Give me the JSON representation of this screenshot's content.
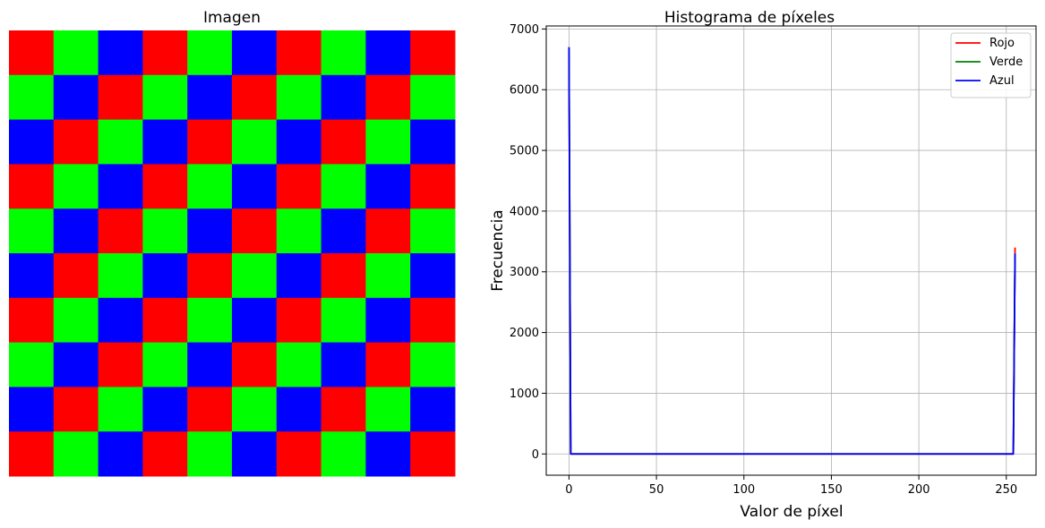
{
  "image_panel": {
    "title": "Imagen",
    "grid_rows": 10,
    "grid_cols": 10,
    "pattern": [
      "red",
      "green",
      "blue"
    ],
    "colors": {
      "red": "#ff0000",
      "green": "#00ff00",
      "blue": "#0000ff"
    }
  },
  "chart_data": {
    "type": "line",
    "title": "Histograma de píxeles",
    "xlabel": "Valor de píxel",
    "ylabel": "Frecuencia",
    "xlim": [
      -13,
      267
    ],
    "ylim": [
      -350,
      7050
    ],
    "xticks": [
      0,
      50,
      100,
      150,
      200,
      250
    ],
    "yticks": [
      0,
      1000,
      2000,
      3000,
      4000,
      5000,
      6000,
      7000
    ],
    "grid": true,
    "legend_position": "top-right",
    "series": [
      {
        "name": "Rojo",
        "color": "#ff0000",
        "points": [
          [
            0,
            6600
          ],
          [
            1,
            0
          ],
          [
            254,
            0
          ],
          [
            255,
            3400
          ]
        ]
      },
      {
        "name": "Verde",
        "color": "#008000",
        "points": [
          [
            0,
            6700
          ],
          [
            1,
            0
          ],
          [
            254,
            0
          ],
          [
            255,
            3300
          ]
        ]
      },
      {
        "name": "Azul",
        "color": "#0000ff",
        "points": [
          [
            0,
            6700
          ],
          [
            1,
            0
          ],
          [
            254,
            0
          ],
          [
            255,
            3300
          ]
        ]
      }
    ]
  }
}
